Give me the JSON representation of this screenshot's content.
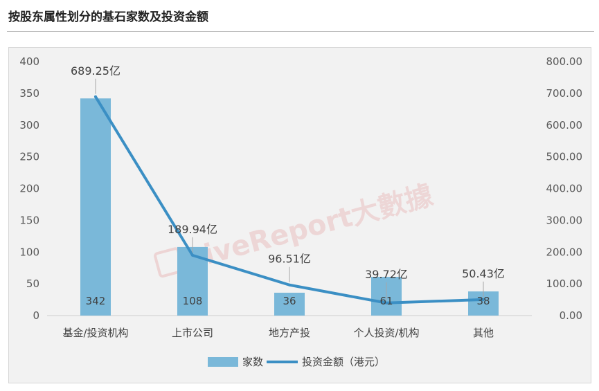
{
  "header": {
    "title": "按股东属性划分的基石家数及投资金额"
  },
  "watermark": {
    "text": "LiveReport大數據"
  },
  "colors": {
    "bar": "#7ab8d9",
    "line": "#3b8fc4",
    "axis": "#d9d9d9",
    "panel_bg": "#f2f2f2"
  },
  "chart_data": {
    "type": "bar",
    "categories": [
      "基金/投资机构",
      "上市公司",
      "地方产投",
      "个人投资/机构",
      "其他"
    ],
    "series": [
      {
        "name": "家数",
        "type": "bar",
        "axis": "left",
        "values": [
          342,
          108,
          36,
          61,
          38
        ],
        "data_labels": [
          "342",
          "108",
          "36",
          "61",
          "38"
        ]
      },
      {
        "name": "投资金额（港元）",
        "type": "line",
        "axis": "right",
        "values": [
          689.25,
          189.94,
          96.51,
          39.72,
          50.43
        ],
        "data_labels": [
          "689.25亿",
          "189.94亿",
          "96.51亿",
          "39.72亿",
          "50.43亿"
        ]
      }
    ],
    "y_left": {
      "lim": [
        0,
        400
      ],
      "ticks": [
        "0",
        "50",
        "100",
        "150",
        "200",
        "250",
        "300",
        "350",
        "400"
      ]
    },
    "y_right": {
      "lim": [
        0,
        800
      ],
      "ticks": [
        "0.00",
        "100.00",
        "200.00",
        "300.00",
        "400.00",
        "500.00",
        "600.00",
        "700.00",
        "800.00"
      ]
    },
    "legend_position": "bottom",
    "grid": false
  }
}
